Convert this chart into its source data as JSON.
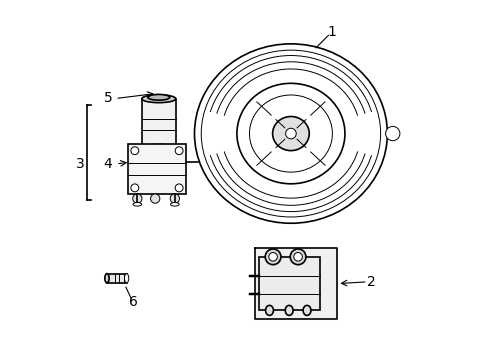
{
  "bg_color": "#ffffff",
  "line_color": "#000000",
  "line_width": 1.2,
  "thin_line": 0.7,
  "fig_width": 4.89,
  "fig_height": 3.6,
  "dpi": 100,
  "label_fontsize": 10
}
